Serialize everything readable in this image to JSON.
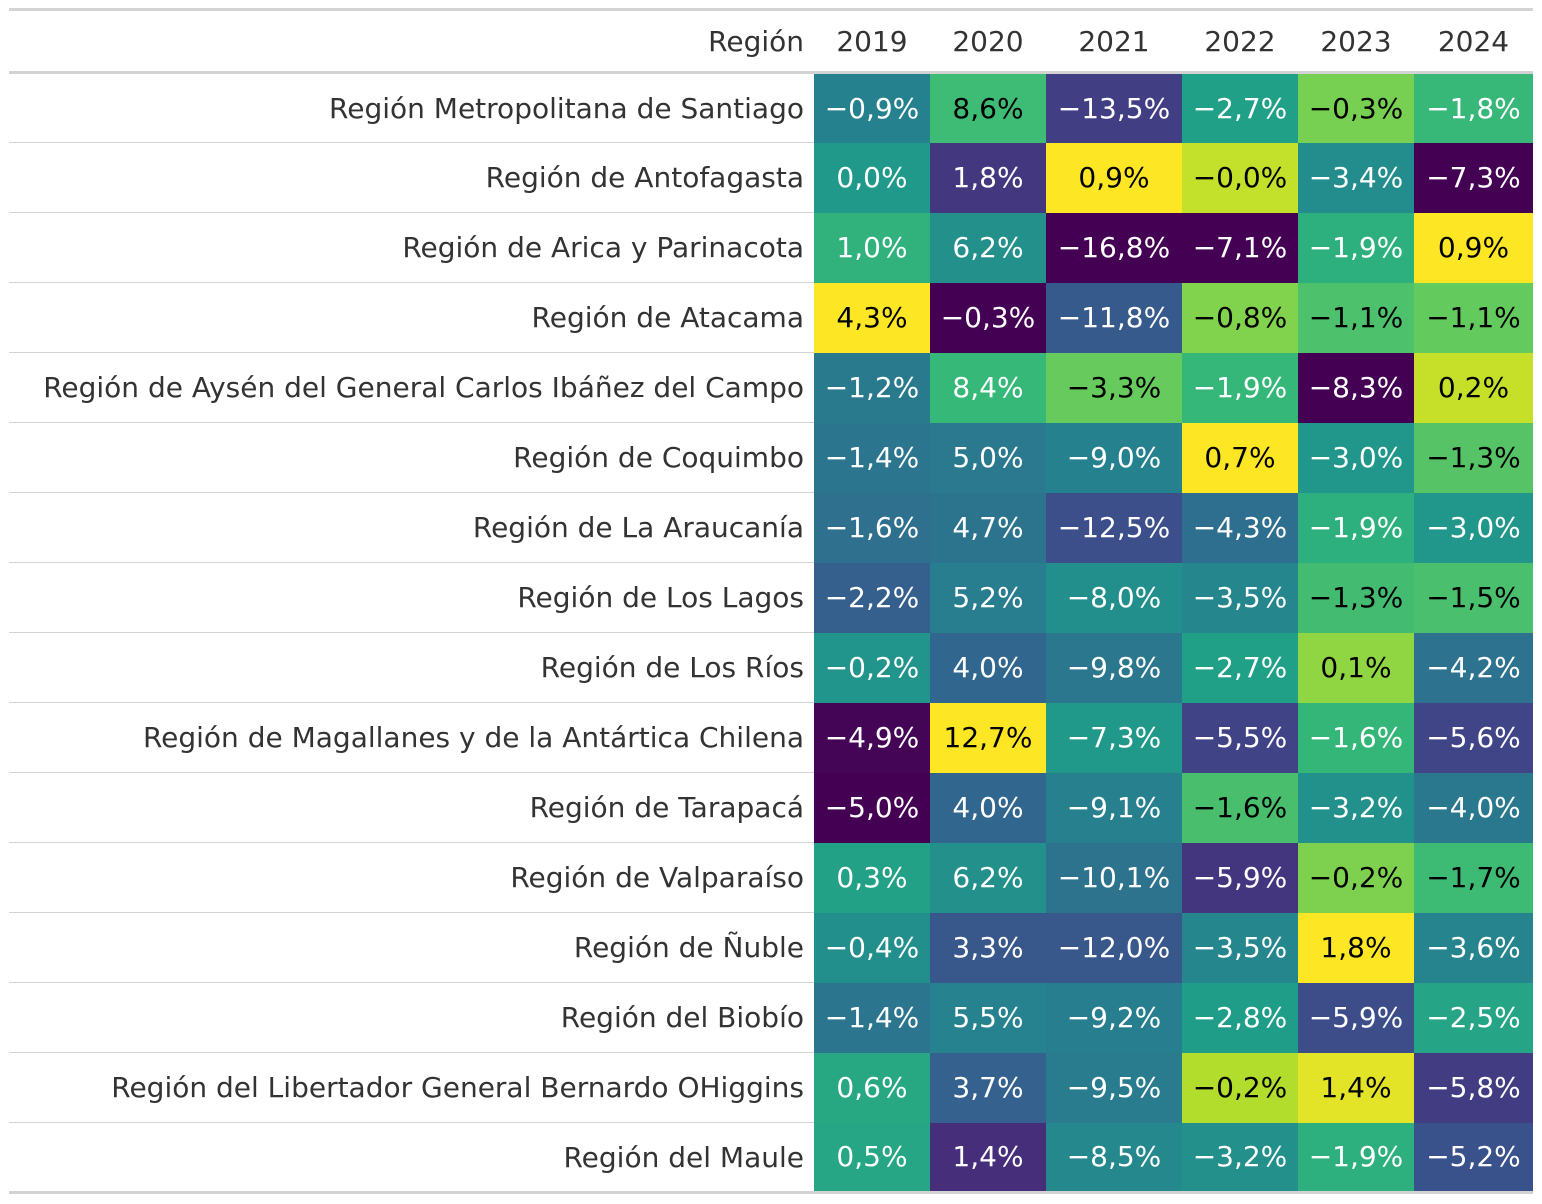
{
  "chart_data": {
    "type": "heatmap",
    "row_header": "Región",
    "columns": [
      "2019",
      "2020",
      "2021",
      "2022",
      "2023",
      "2024"
    ],
    "color_scale": "viridis, per column",
    "colormap": [
      "#440154",
      "#482878",
      "#3e4989",
      "#31688e",
      "#26828e",
      "#1f9e89",
      "#35b779",
      "#6ece58",
      "#b5de2b",
      "#fde725"
    ],
    "rows": [
      {
        "region": "Región Metropolitana de Santiago",
        "values": [
          -0.9,
          8.6,
          -13.5,
          -2.7,
          -0.3,
          -1.8
        ],
        "labels": [
          "−0,9%",
          "8,6%",
          "−13,5%",
          "−2,7%",
          "−0,3%",
          "−1,8%"
        ]
      },
      {
        "region": "Región de Antofagasta",
        "values": [
          0.0,
          1.8,
          0.9,
          -0.0,
          -3.4,
          -7.3
        ],
        "labels": [
          "0,0%",
          "1,8%",
          "0,9%",
          "−0,0%",
          "−3,4%",
          "−7,3%"
        ]
      },
      {
        "region": "Región de Arica y Parinacota",
        "values": [
          1.0,
          6.2,
          -16.8,
          -7.1,
          -1.9,
          0.9
        ],
        "labels": [
          "1,0%",
          "6,2%",
          "−16,8%",
          "−7,1%",
          "−1,9%",
          "0,9%"
        ]
      },
      {
        "region": "Región de Atacama",
        "values": [
          4.3,
          -0.3,
          -11.8,
          -0.8,
          -1.1,
          -1.1
        ],
        "labels": [
          "4,3%",
          "−0,3%",
          "−11,8%",
          "−0,8%",
          "−1,1%",
          "−1,1%"
        ]
      },
      {
        "region": "Región de Aysén del General Carlos Ibáñez del Campo",
        "values": [
          -1.2,
          8.4,
          -3.3,
          -1.9,
          -8.3,
          0.2
        ],
        "labels": [
          "−1,2%",
          "8,4%",
          "−3,3%",
          "−1,9%",
          "−8,3%",
          "0,2%"
        ]
      },
      {
        "region": "Región de Coquimbo",
        "values": [
          -1.4,
          5.0,
          -9.0,
          0.7,
          -3.0,
          -1.3
        ],
        "labels": [
          "−1,4%",
          "5,0%",
          "−9,0%",
          "0,7%",
          "−3,0%",
          "−1,3%"
        ]
      },
      {
        "region": "Región de La Araucanía",
        "values": [
          -1.6,
          4.7,
          -12.5,
          -4.3,
          -1.9,
          -3.0
        ],
        "labels": [
          "−1,6%",
          "4,7%",
          "−12,5%",
          "−4,3%",
          "−1,9%",
          "−3,0%"
        ]
      },
      {
        "region": "Región de Los Lagos",
        "values": [
          -2.2,
          5.2,
          -8.0,
          -3.5,
          -1.3,
          -1.5
        ],
        "labels": [
          "−2,2%",
          "5,2%",
          "−8,0%",
          "−3,5%",
          "−1,3%",
          "−1,5%"
        ]
      },
      {
        "region": "Región de Los Ríos",
        "values": [
          -0.2,
          4.0,
          -9.8,
          -2.7,
          0.1,
          -4.2
        ],
        "labels": [
          "−0,2%",
          "4,0%",
          "−9,8%",
          "−2,7%",
          "0,1%",
          "−4,2%"
        ]
      },
      {
        "region": "Región de Magallanes y de la Antártica Chilena",
        "values": [
          -4.9,
          12.7,
          -7.3,
          -5.5,
          -1.6,
          -5.6
        ],
        "labels": [
          "−4,9%",
          "12,7%",
          "−7,3%",
          "−5,5%",
          "−1,6%",
          "−5,6%"
        ]
      },
      {
        "region": "Región de Tarapacá",
        "values": [
          -5.0,
          4.0,
          -9.1,
          -1.6,
          -3.2,
          -4.0
        ],
        "labels": [
          "−5,0%",
          "4,0%",
          "−9,1%",
          "−1,6%",
          "−3,2%",
          "−4,0%"
        ]
      },
      {
        "region": "Región de Valparaíso",
        "values": [
          0.3,
          6.2,
          -10.1,
          -5.9,
          -0.2,
          -1.7
        ],
        "labels": [
          "0,3%",
          "6,2%",
          "−10,1%",
          "−5,9%",
          "−0,2%",
          "−1,7%"
        ]
      },
      {
        "region": "Región de Ñuble",
        "values": [
          -0.4,
          3.3,
          -12.0,
          -3.5,
          1.8,
          -3.6
        ],
        "labels": [
          "−0,4%",
          "3,3%",
          "−12,0%",
          "−3,5%",
          "1,8%",
          "−3,6%"
        ]
      },
      {
        "region": "Región del Biobío",
        "values": [
          -1.4,
          5.5,
          -9.2,
          -2.8,
          -5.9,
          -2.5
        ],
        "labels": [
          "−1,4%",
          "5,5%",
          "−9,2%",
          "−2,8%",
          "−5,9%",
          "−2,5%"
        ]
      },
      {
        "region": "Región del Libertador General Bernardo OHiggins",
        "values": [
          0.6,
          3.7,
          -9.5,
          -0.2,
          1.4,
          -5.8
        ],
        "labels": [
          "0,6%",
          "3,7%",
          "−9,5%",
          "−0,2%",
          "1,4%",
          "−5,8%"
        ]
      },
      {
        "region": "Región del Maule",
        "values": [
          0.5,
          1.4,
          -8.5,
          -3.2,
          -1.9,
          -5.2
        ],
        "labels": [
          "0,5%",
          "1,4%",
          "−8,5%",
          "−3,2%",
          "−1,9%",
          "−5,2%"
        ]
      }
    ]
  }
}
